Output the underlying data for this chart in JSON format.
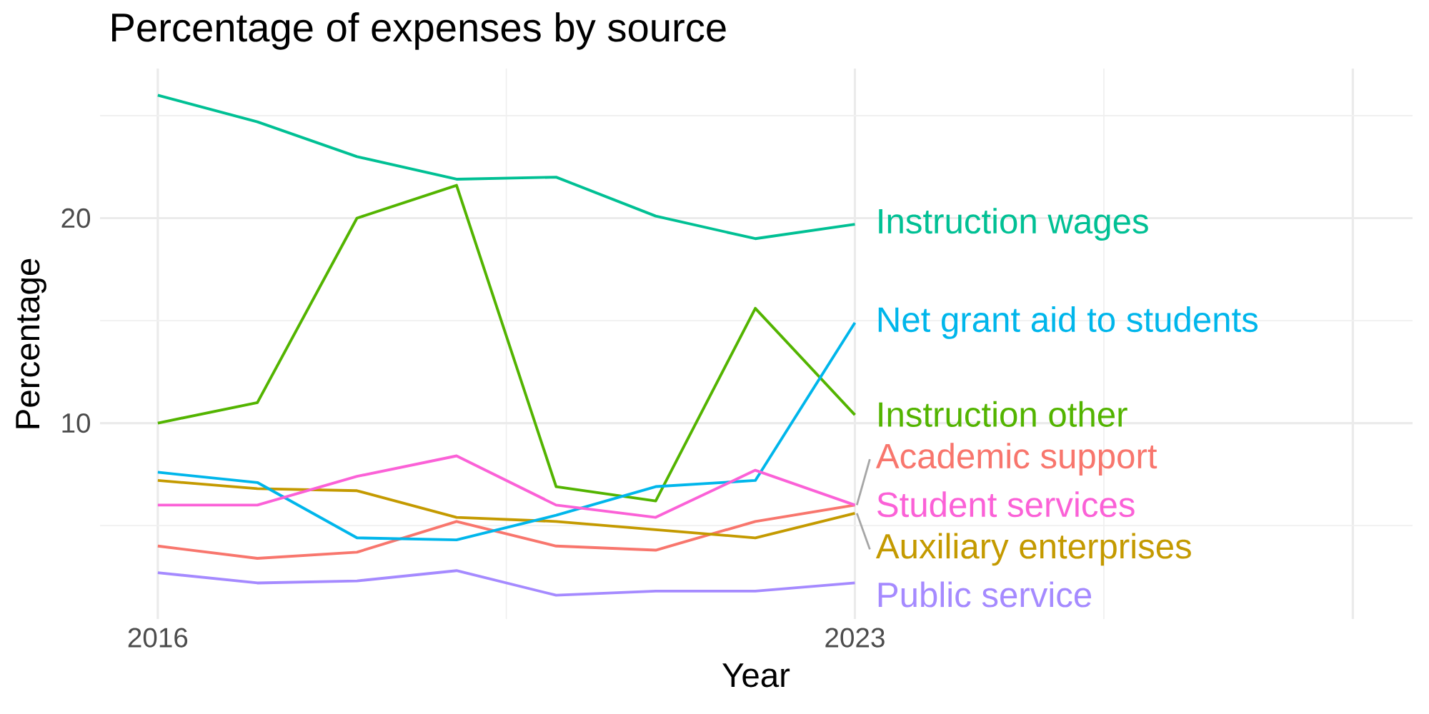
{
  "chart_data": {
    "type": "line",
    "title": "Percentage of expenses by source",
    "xlabel": "Year",
    "ylabel": "Percentage",
    "x": [
      2016,
      2017,
      2018,
      2019,
      2020,
      2021,
      2022,
      2023
    ],
    "xlim": [
      2015.42,
      2028.6
    ],
    "xticks": [
      2016,
      2023,
      {
        "value": 2028,
        "label": null
      }
    ],
    "ylim": [
      0.44,
      27.3
    ],
    "yticks": [
      10,
      20
    ],
    "grid": true,
    "legend": false,
    "marker": "none",
    "line_style": "solid",
    "series": [
      {
        "name": "Academic support",
        "color": "#F8766D",
        "values": [
          4.0,
          3.4,
          3.7,
          5.2,
          4.0,
          3.8,
          5.2,
          6.0
        ]
      },
      {
        "name": "Auxiliary enterprises",
        "color": "#C49A00",
        "values": [
          7.2,
          6.8,
          6.7,
          5.4,
          5.2,
          4.8,
          4.4,
          5.6
        ]
      },
      {
        "name": "Instruction other",
        "color": "#53B400",
        "values": [
          10.0,
          11.0,
          20.0,
          21.6,
          6.9,
          6.2,
          15.6,
          10.4
        ]
      },
      {
        "name": "Instruction wages",
        "color": "#00C094",
        "values": [
          26.0,
          24.7,
          23.0,
          21.9,
          22.0,
          20.1,
          19.0,
          19.7
        ]
      },
      {
        "name": "Net grant aid to students",
        "color": "#00B6EB",
        "values": [
          7.6,
          7.1,
          4.4,
          4.3,
          5.5,
          6.9,
          7.2,
          14.9
        ]
      },
      {
        "name": "Public service",
        "color": "#A58AFF",
        "values": [
          2.7,
          2.2,
          2.3,
          2.8,
          1.6,
          1.8,
          1.8,
          2.2
        ]
      },
      {
        "name": "Student services",
        "color": "#FB61D7",
        "values": [
          6.0,
          6.0,
          7.4,
          8.4,
          6.0,
          5.4,
          7.7,
          6.0
        ]
      }
    ]
  }
}
